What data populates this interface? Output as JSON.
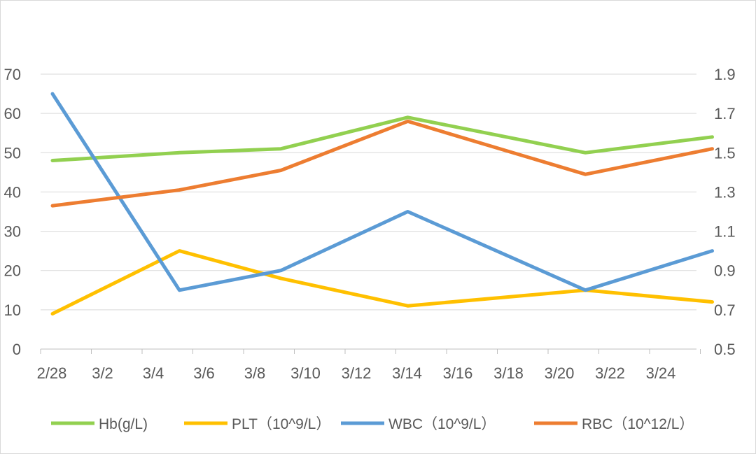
{
  "chart_data": {
    "type": "line",
    "title": "",
    "xlabel": "",
    "ylabel": "",
    "x_ticks": [
      "2/28",
      "3/2",
      "3/4",
      "3/6",
      "3/8",
      "3/10",
      "3/12",
      "3/14",
      "3/16",
      "3/18",
      "3/20",
      "3/22",
      "3/24"
    ],
    "ylim": [
      0,
      70
    ],
    "y_ticks": [
      "0",
      "10",
      "20",
      "30",
      "40",
      "50",
      "60",
      "70"
    ],
    "y2lim": [
      0.5,
      1.9
    ],
    "y2_ticks": [
      "0.5",
      "0.7",
      "0.9",
      "1.1",
      "1.3",
      "1.5",
      "1.7",
      "1.9"
    ],
    "grid": true,
    "legend_position": "bottom",
    "series": [
      {
        "name": "Hb(g/L)",
        "axis": "left",
        "color": "#92d050",
        "points": [
          {
            "x": "2/28",
            "y": 48
          },
          {
            "x": "3/4",
            "y": 50
          },
          {
            "x": "3/8",
            "y": 51
          },
          {
            "x": "3/13",
            "y": 59
          },
          {
            "x": "3/20",
            "y": 50
          },
          {
            "x": "3/25",
            "y": 54
          }
        ]
      },
      {
        "name": "PLT（10^9/L）",
        "axis": "left",
        "color": "#ffc000",
        "points": [
          {
            "x": "2/28",
            "y": 9
          },
          {
            "x": "3/4",
            "y": 25
          },
          {
            "x": "3/8",
            "y": 18
          },
          {
            "x": "3/13",
            "y": 11
          },
          {
            "x": "3/20",
            "y": 15
          },
          {
            "x": "3/25",
            "y": 12
          }
        ]
      },
      {
        "name": "WBC（10^9/L）",
        "axis": "right",
        "color": "#5b9bd5",
        "points": [
          {
            "x": "2/28",
            "y": 1.8
          },
          {
            "x": "3/4",
            "y": 0.8
          },
          {
            "x": "3/8",
            "y": 0.9
          },
          {
            "x": "3/13",
            "y": 1.2
          },
          {
            "x": "3/20",
            "y": 0.8
          },
          {
            "x": "3/25",
            "y": 1.0
          }
        ]
      },
      {
        "name": "RBC（10^12/L）",
        "axis": "right",
        "color": "#ed7d31",
        "points": [
          {
            "x": "2/28",
            "y": 1.23
          },
          {
            "x": "3/4",
            "y": 1.31
          },
          {
            "x": "3/8",
            "y": 1.41
          },
          {
            "x": "3/13",
            "y": 1.66
          },
          {
            "x": "3/20",
            "y": 1.39
          },
          {
            "x": "3/25",
            "y": 1.52
          }
        ]
      }
    ]
  }
}
